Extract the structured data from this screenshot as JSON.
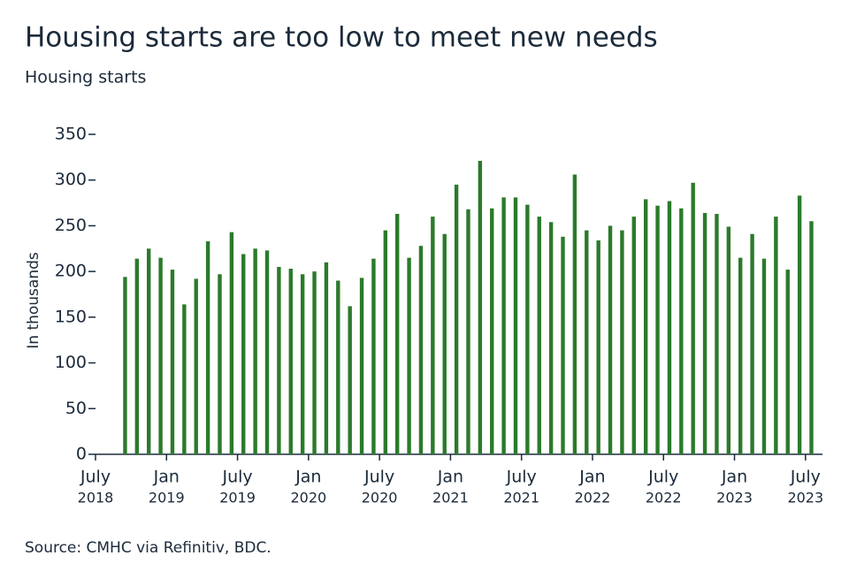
{
  "chart_data": {
    "type": "bar",
    "title": "Housing starts are too low to meet new needs",
    "subtitle": "Housing starts",
    "y_label": "In thousands",
    "source": "Source: CMHC via Refinitiv, BDC.",
    "color": "#2b7a2b",
    "x": [
      "2018-10",
      "2018-11",
      "2018-12",
      "2019-01",
      "2019-02",
      "2019-03",
      "2019-04",
      "2019-05",
      "2019-06",
      "2019-07",
      "2019-08",
      "2019-09",
      "2019-10",
      "2019-11",
      "2019-12",
      "2020-01",
      "2020-02",
      "2020-03",
      "2020-04",
      "2020-05",
      "2020-06",
      "2020-07",
      "2020-08",
      "2020-09",
      "2020-10",
      "2020-11",
      "2020-12",
      "2021-01",
      "2021-02",
      "2021-03",
      "2021-04",
      "2021-05",
      "2021-06",
      "2021-07",
      "2021-08",
      "2021-09",
      "2021-10",
      "2021-11",
      "2021-12",
      "2022-01",
      "2022-02",
      "2022-03",
      "2022-04",
      "2022-05",
      "2022-06",
      "2022-07",
      "2022-08",
      "2022-09",
      "2022-10",
      "2022-11",
      "2022-12",
      "2023-01",
      "2023-02",
      "2023-03",
      "2023-04",
      "2023-05",
      "2023-06",
      "2023-07",
      "2023-08"
    ],
    "values": [
      194,
      214,
      225,
      215,
      202,
      164,
      192,
      233,
      197,
      243,
      219,
      225,
      223,
      205,
      203,
      197,
      200,
      210,
      190,
      162,
      193,
      214,
      245,
      263,
      215,
      228,
      260,
      241,
      295,
      268,
      321,
      269,
      281,
      281,
      273,
      260,
      254,
      238,
      306,
      245,
      234,
      250,
      245,
      260,
      279,
      272,
      277,
      269,
      297,
      264,
      263,
      249,
      215,
      241,
      214,
      260,
      202,
      283,
      255
    ],
    "xticks": [
      {
        "value": "2018-07",
        "label": [
          "July",
          "2018"
        ]
      },
      {
        "value": "2019-01",
        "label": [
          "Jan",
          "2019"
        ]
      },
      {
        "value": "2019-07",
        "label": [
          "July",
          "2019"
        ]
      },
      {
        "value": "2020-01",
        "label": [
          "Jan",
          "2020"
        ]
      },
      {
        "value": "2020-07",
        "label": [
          "July",
          "2020"
        ]
      },
      {
        "value": "2021-01",
        "label": [
          "Jan",
          "2021"
        ]
      },
      {
        "value": "2021-07",
        "label": [
          "July",
          "2021"
        ]
      },
      {
        "value": "2022-01",
        "label": [
          "Jan",
          "2022"
        ]
      },
      {
        "value": "2022-07",
        "label": [
          "July",
          "2022"
        ]
      },
      {
        "value": "2023-01",
        "label": [
          "Jan",
          "2023"
        ]
      },
      {
        "value": "2023-07",
        "label": [
          "July",
          "2023"
        ]
      }
    ],
    "ylim": [
      0,
      350
    ],
    "yticks": [
      0,
      50,
      100,
      150,
      200,
      250,
      300,
      350
    ]
  }
}
